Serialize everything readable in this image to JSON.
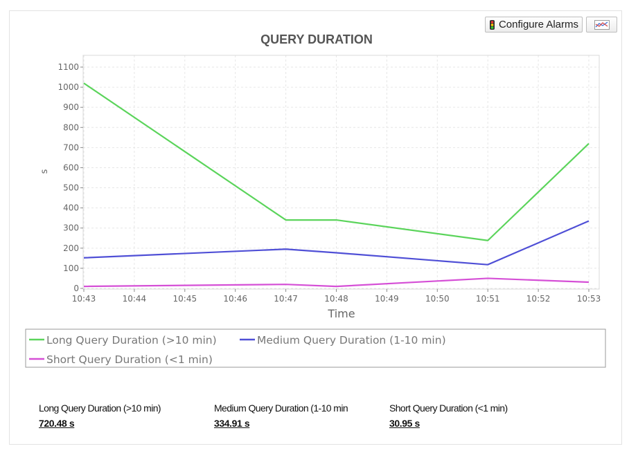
{
  "toolbar": {
    "configure_alarms_label": "Configure Alarms",
    "alarm_icon": "traffic-light-icon",
    "chart_icon": "line-chart-icon"
  },
  "chart_data": {
    "type": "line",
    "title": "QUERY DURATION",
    "xlabel": "Time",
    "ylabel": "s",
    "x": [
      "10:43",
      "10:44",
      "10:45",
      "10:46",
      "10:47",
      "10:48",
      "10:49",
      "10:50",
      "10:51",
      "10:52",
      "10:53"
    ],
    "ylim": [
      0,
      1150
    ],
    "yticks": [
      0,
      100,
      200,
      300,
      400,
      500,
      600,
      700,
      800,
      900,
      1000,
      1100
    ],
    "grid": true,
    "legend_position": "bottom",
    "series": [
      {
        "name": "Long Query Duration (>10 min)",
        "color": "#5bd45b",
        "points": [
          [
            "10:43",
            1020
          ],
          [
            "10:47",
            340
          ],
          [
            "10:48",
            340
          ],
          [
            "10:51",
            238
          ],
          [
            "10:53",
            720
          ]
        ]
      },
      {
        "name": "Medium Query Duration (1-10 min)",
        "color": "#4f4fd6",
        "points": [
          [
            "10:43",
            152
          ],
          [
            "10:47",
            195
          ],
          [
            "10:48",
            177
          ],
          [
            "10:51",
            118
          ],
          [
            "10:53",
            335
          ]
        ]
      },
      {
        "name": "Short Query Duration (<1 min)",
        "color": "#d54fd6",
        "points": [
          [
            "10:43",
            10
          ],
          [
            "10:47",
            20
          ],
          [
            "10:48",
            10
          ],
          [
            "10:51",
            50
          ],
          [
            "10:53",
            31
          ]
        ]
      }
    ]
  },
  "summary": [
    {
      "label": "Long Query Duration (>10 min)",
      "value": "720.48 s"
    },
    {
      "label": "Medium Query Duration (1-10 min",
      "value": "334.91 s"
    },
    {
      "label": "Short Query Duration (<1 min)",
      "value": "30.95 s"
    }
  ]
}
